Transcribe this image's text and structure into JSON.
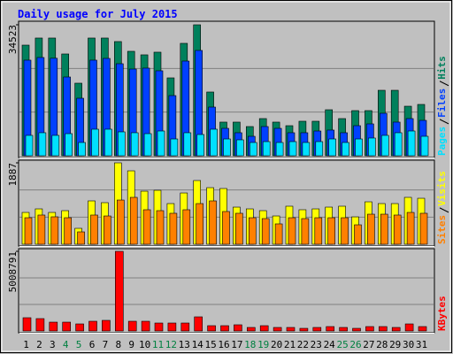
{
  "chart_data": [
    {
      "type": "bar",
      "title": "Daily usage for July 2015",
      "ylim": [
        0,
        34523
      ],
      "yticks": [
        34523
      ],
      "series": [
        {
          "name": "Hits",
          "color": "#00805c",
          "values": [
            29160,
            31030,
            31030,
            26830,
            19130,
            31030,
            31030,
            30100,
            27530,
            26600,
            27300,
            20530,
            29630,
            34523,
            16800,
            8870,
            8870,
            7700,
            9800,
            8870,
            7930,
            9100,
            9100,
            12130,
            9800,
            11900,
            11900,
            17260,
            17260,
            13060,
            13530
          ]
        },
        {
          "name": "Files",
          "color": "#0040ff",
          "values": [
            25200,
            25900,
            25700,
            20760,
            15160,
            25200,
            25660,
            24260,
            22860,
            23100,
            22400,
            15860,
            24960,
            27760,
            12830,
            7230,
            6070,
            5130,
            7700,
            7230,
            6070,
            6070,
            6530,
            6770,
            6070,
            7930,
            8400,
            11200,
            8870,
            9800,
            9330
          ]
        },
        {
          "name": "Pages",
          "color": "#00e0ff",
          "values": [
            5370,
            6070,
            5370,
            5830,
            3500,
            7000,
            7000,
            6300,
            6070,
            5830,
            6530,
            4430,
            6070,
            5600,
            7000,
            4430,
            4200,
            3500,
            3730,
            3500,
            3730,
            3500,
            3730,
            4430,
            3500,
            4430,
            4670,
            5370,
            6070,
            6530,
            5130
          ]
        }
      ]
    },
    {
      "type": "bar",
      "ylim": [
        0,
        1887
      ],
      "yticks": [
        1887
      ],
      "series": [
        {
          "name": "Visits",
          "color": "#ffff00",
          "values": [
            738,
            820,
            738,
            779,
            369,
            1005,
            964,
            1887,
            1702,
            1230,
            1251,
            943,
            1189,
            1477,
            1312,
            1292,
            861,
            820,
            779,
            656,
            882,
            800,
            820,
            861,
            882,
            635,
            984,
            943,
            943,
            1087,
            1066
          ]
        },
        {
          "name": "Sites",
          "color": "#ff8000",
          "values": [
            615,
            677,
            636,
            615,
            287,
            677,
            656,
            1025,
            1087,
            800,
            779,
            718,
            800,
            943,
            1005,
            759,
            718,
            615,
            595,
            472,
            615,
            595,
            615,
            615,
            615,
            451,
            697,
            697,
            677,
            738,
            718
          ]
        }
      ]
    },
    {
      "type": "bar",
      "ylim": [
        0,
        5008791
      ],
      "yticks": [
        5008791
      ],
      "categories": [
        "1",
        "2",
        "3",
        "4",
        "5",
        "6",
        "7",
        "8",
        "9",
        "10",
        "11",
        "12",
        "13",
        "14",
        "15",
        "16",
        "17",
        "18",
        "19",
        "20",
        "21",
        "22",
        "23",
        "24",
        "25",
        "26",
        "27",
        "28",
        "29",
        "30",
        "31"
      ],
      "highlight_categories": [
        3,
        4,
        10,
        11,
        17,
        18,
        24,
        25
      ],
      "highlight_color": "#008040",
      "label_color": "#000000",
      "series": [
        {
          "name": "KBytes",
          "color": "#ff0000",
          "values": [
            835000,
            779000,
            556000,
            556000,
            445000,
            612000,
            668000,
            5008791,
            612000,
            612000,
            501000,
            501000,
            501000,
            890000,
            334000,
            334000,
            390000,
            223000,
            334000,
            223000,
            223000,
            167000,
            223000,
            278000,
            223000,
            167000,
            278000,
            278000,
            223000,
            445000,
            278000
          ]
        }
      ]
    }
  ]
}
